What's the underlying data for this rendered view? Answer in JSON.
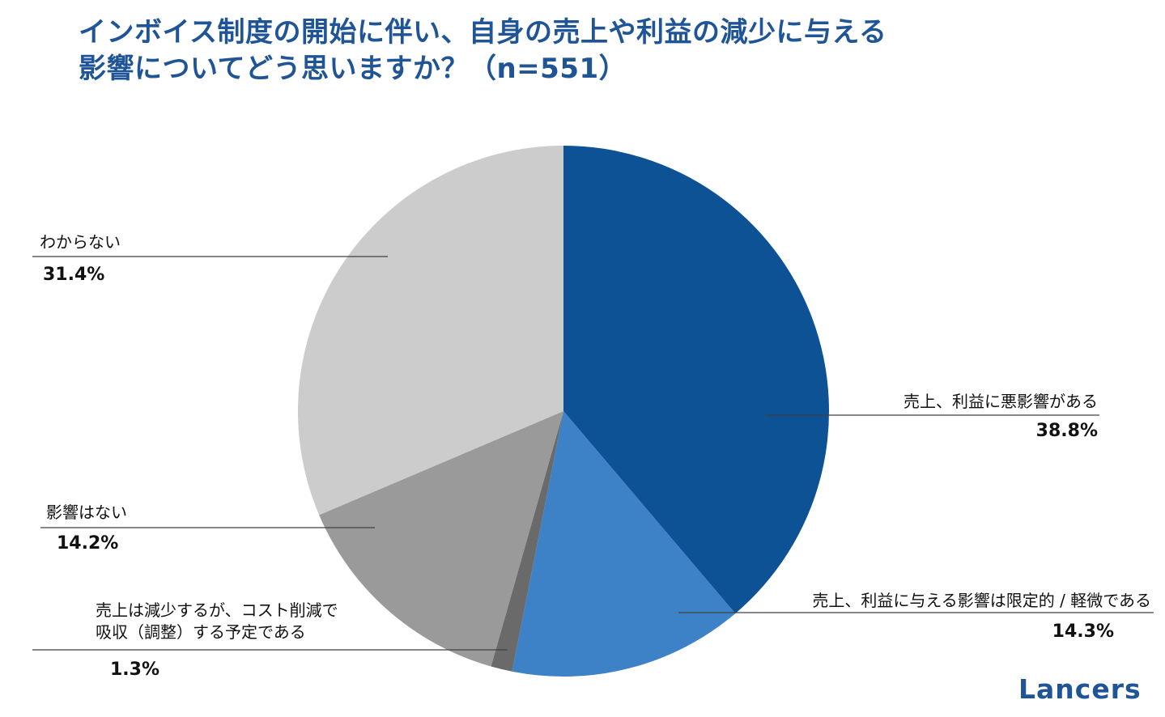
{
  "title": {
    "line1": "インボイス制度の開始に伴い、自身の売上や利益の減少に与える",
    "line2": "影響についてどう思いますか？（n=551）"
  },
  "logo": "Lancers",
  "chart_data": {
    "type": "pie",
    "title": "インボイス制度の開始に伴い、自身の売上や利益の減少に与える影響についてどう思いますか？（n=551）",
    "slices": [
      {
        "label": "売上、利益に悪影響がある",
        "value": 38.8,
        "value_label": "38.8%",
        "color": "#0d5294"
      },
      {
        "label": "売上、利益に与える影響は限定的 / 軽微である",
        "value": 14.3,
        "value_label": "14.3%",
        "color": "#3d82c6"
      },
      {
        "label": "売上は減少するが、コスト削減で吸収（調整）する予定である",
        "label_lines": [
          "売上は減少するが、コスト削減で",
          "吸収（調整）する予定である"
        ],
        "value": 1.3,
        "value_label": "1.3%",
        "color": "#6a6a6a"
      },
      {
        "label": "影響はない",
        "value": 14.2,
        "value_label": "14.2%",
        "color": "#9a9a9a"
      },
      {
        "label": "わからない",
        "value": 31.4,
        "value_label": "31.4%",
        "color": "#cccccc"
      }
    ]
  }
}
